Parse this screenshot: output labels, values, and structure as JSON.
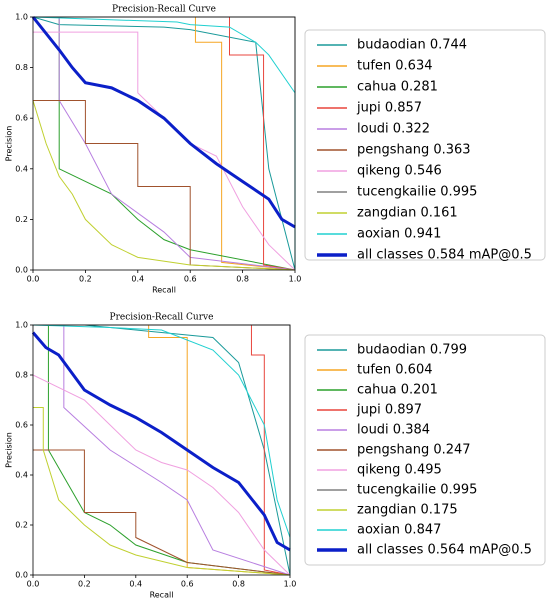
{
  "chart_data": [
    {
      "type": "line",
      "title": "Precision-Recall Curve",
      "xlabel": "Recall",
      "ylabel": "Precision",
      "xlim": [
        0,
        1
      ],
      "ylim": [
        0,
        1
      ],
      "xticks": [
        {
          "value": 0,
          "label": "0.0"
        },
        {
          "value": 0.2,
          "label": "0.2"
        },
        {
          "value": 0.4,
          "label": "0.4"
        },
        {
          "value": 0.6,
          "label": "0.6"
        },
        {
          "value": 0.8,
          "label": "0.8"
        },
        {
          "value": 1,
          "label": "1.0"
        }
      ],
      "yticks": [
        {
          "value": 0,
          "label": "0.0"
        },
        {
          "value": 0.2,
          "label": "0.2"
        },
        {
          "value": 0.4,
          "label": "0.4"
        },
        {
          "value": 0.6,
          "label": "0.6"
        },
        {
          "value": 0.8,
          "label": "0.8"
        },
        {
          "value": 1,
          "label": "1.0"
        }
      ],
      "series": [
        {
          "name": "budaodian 0.744",
          "color": "#1a9a9a",
          "x": [
            0,
            0.1,
            0.5,
            0.6,
            0.85,
            0.9,
            1.0
          ],
          "values": [
            1,
            0.97,
            0.96,
            0.95,
            0.9,
            0.4,
            0
          ]
        },
        {
          "name": "tufen 0.634",
          "color": "#f5a623",
          "x": [
            0,
            0.62,
            0.62,
            0.72,
            0.72,
            1.0
          ],
          "values": [
            1,
            1,
            0.9,
            0.9,
            0.03,
            0
          ]
        },
        {
          "name": "cahua 0.281",
          "color": "#2ca02c",
          "x": [
            0,
            0.1,
            0.1,
            0.2,
            0.3,
            0.4,
            0.5,
            0.6,
            1.0
          ],
          "values": [
            1,
            1,
            0.4,
            0.35,
            0.3,
            0.2,
            0.12,
            0.08,
            0
          ]
        },
        {
          "name": "jupi 0.857",
          "color": "#e8453c",
          "x": [
            0,
            0.75,
            0.75,
            0.88,
            0.88,
            1.0
          ],
          "values": [
            1,
            1,
            0.85,
            0.85,
            0.02,
            0
          ]
        },
        {
          "name": "loudi 0.322",
          "color": "#b87fe0",
          "x": [
            0,
            0.1,
            0.1,
            0.2,
            0.3,
            0.5,
            0.6,
            1.0
          ],
          "values": [
            1,
            1,
            0.67,
            0.5,
            0.3,
            0.15,
            0.05,
            0
          ]
        },
        {
          "name": "pengshang 0.363",
          "color": "#a0522d",
          "x": [
            0,
            0.2,
            0.2,
            0.4,
            0.4,
            0.6,
            0.6,
            1.0
          ],
          "values": [
            0.67,
            0.67,
            0.5,
            0.5,
            0.33,
            0.33,
            0.02,
            0
          ]
        },
        {
          "name": "qikeng 0.546",
          "color": "#f0a0e0",
          "x": [
            0,
            0.4,
            0.4,
            0.5,
            0.6,
            0.7,
            0.8,
            0.9,
            1.0
          ],
          "values": [
            0.94,
            0.94,
            0.7,
            0.6,
            0.5,
            0.45,
            0.25,
            0.1,
            0
          ]
        },
        {
          "name": "tucengkailie 0.995",
          "color": "#808080",
          "x": [
            0,
            1.0,
            1.0
          ],
          "values": [
            1,
            1,
            0
          ]
        },
        {
          "name": "zangdian 0.161",
          "color": "#c0d030",
          "x": [
            0,
            0.05,
            0.1,
            0.15,
            0.2,
            0.3,
            0.4,
            0.6,
            1.0
          ],
          "values": [
            0.67,
            0.5,
            0.37,
            0.3,
            0.2,
            0.1,
            0.05,
            0.02,
            0
          ]
        },
        {
          "name": "aoxian 0.941",
          "color": "#20d0d0",
          "x": [
            0,
            0.55,
            0.6,
            0.75,
            0.85,
            0.9,
            1.0,
            1.0
          ],
          "values": [
            1,
            0.98,
            0.97,
            0.96,
            0.9,
            0.85,
            0.7,
            0
          ]
        },
        {
          "name": "all classes 0.584 mAP@0.5",
          "color": "#0b1fc8",
          "width": 3,
          "x": [
            0,
            0.1,
            0.15,
            0.2,
            0.3,
            0.4,
            0.5,
            0.6,
            0.7,
            0.8,
            0.9,
            0.95,
            1.0
          ],
          "values": [
            1,
            0.87,
            0.8,
            0.74,
            0.72,
            0.67,
            0.6,
            0.5,
            0.42,
            0.35,
            0.28,
            0.2,
            0.17
          ]
        }
      ]
    },
    {
      "type": "line",
      "title": "Precision-Recall Curve",
      "xlabel": "Recall",
      "ylabel": "Precision",
      "xlim": [
        0,
        1
      ],
      "ylim": [
        0,
        1
      ],
      "xticks": [
        {
          "value": 0,
          "label": "0.0"
        },
        {
          "value": 0.2,
          "label": "0.2"
        },
        {
          "value": 0.4,
          "label": "0.4"
        },
        {
          "value": 0.6,
          "label": "0.6"
        },
        {
          "value": 0.8,
          "label": "0.8"
        },
        {
          "value": 1,
          "label": "1.0"
        }
      ],
      "yticks": [
        {
          "value": 0,
          "label": "0.0"
        },
        {
          "value": 0.2,
          "label": "0.2"
        },
        {
          "value": 0.4,
          "label": "0.4"
        },
        {
          "value": 0.6,
          "label": "0.6"
        },
        {
          "value": 0.8,
          "label": "0.8"
        },
        {
          "value": 1,
          "label": "1.0"
        }
      ],
      "series": [
        {
          "name": "budaodian 0.799",
          "color": "#1a9a9a",
          "x": [
            0,
            0.2,
            0.5,
            0.7,
            0.8,
            0.9,
            1.0
          ],
          "values": [
            1,
            1,
            0.97,
            0.95,
            0.85,
            0.5,
            0
          ]
        },
        {
          "name": "tufen 0.604",
          "color": "#f5a623",
          "x": [
            0,
            0.45,
            0.45,
            0.6,
            0.6,
            1.0
          ],
          "values": [
            1,
            1,
            0.95,
            0.95,
            0.03,
            0
          ]
        },
        {
          "name": "cahua 0.201",
          "color": "#2ca02c",
          "x": [
            0,
            0.06,
            0.06,
            0.2,
            0.3,
            0.4,
            0.6,
            1.0
          ],
          "values": [
            1,
            1,
            0.5,
            0.25,
            0.2,
            0.12,
            0.05,
            0
          ]
        },
        {
          "name": "jupi 0.897",
          "color": "#e8453c",
          "x": [
            0,
            0.85,
            0.85,
            0.9,
            0.9,
            1.0
          ],
          "values": [
            1,
            1,
            0.88,
            0.88,
            0.02,
            0
          ]
        },
        {
          "name": "loudi 0.384",
          "color": "#b87fe0",
          "x": [
            0,
            0.12,
            0.12,
            0.3,
            0.5,
            0.6,
            0.7,
            1.0
          ],
          "values": [
            1,
            1,
            0.67,
            0.5,
            0.37,
            0.3,
            0.1,
            0
          ]
        },
        {
          "name": "pengshang 0.247",
          "color": "#a0522d",
          "x": [
            0,
            0.2,
            0.2,
            0.4,
            0.4,
            0.6,
            1.0
          ],
          "values": [
            0.5,
            0.5,
            0.25,
            0.25,
            0.15,
            0.05,
            0
          ]
        },
        {
          "name": "qikeng 0.495",
          "color": "#f0a0e0",
          "x": [
            0,
            0.2,
            0.3,
            0.4,
            0.5,
            0.6,
            0.7,
            0.8,
            0.9,
            1.0
          ],
          "values": [
            0.8,
            0.7,
            0.6,
            0.5,
            0.45,
            0.42,
            0.35,
            0.25,
            0.1,
            0
          ]
        },
        {
          "name": "tucengkailie 0.995",
          "color": "#808080",
          "x": [
            0,
            1.0,
            1.0
          ],
          "values": [
            1,
            1,
            0
          ]
        },
        {
          "name": "zangdian 0.175",
          "color": "#c0d030",
          "x": [
            0,
            0.04,
            0.04,
            0.1,
            0.2,
            0.3,
            0.4,
            0.6,
            1.0
          ],
          "values": [
            0.67,
            0.67,
            0.5,
            0.3,
            0.2,
            0.12,
            0.08,
            0.03,
            0
          ]
        },
        {
          "name": "aoxian 0.847",
          "color": "#20d0d0",
          "x": [
            0,
            0.3,
            0.5,
            0.7,
            0.8,
            0.9,
            0.95,
            1.0,
            1.0
          ],
          "values": [
            1,
            0.99,
            0.98,
            0.9,
            0.8,
            0.6,
            0.3,
            0.15,
            0
          ]
        },
        {
          "name": "all classes 0.564 mAP@0.5",
          "color": "#0b1fc8",
          "width": 3,
          "x": [
            0,
            0.05,
            0.1,
            0.2,
            0.3,
            0.4,
            0.5,
            0.6,
            0.7,
            0.8,
            0.9,
            0.95,
            1.0
          ],
          "values": [
            0.97,
            0.91,
            0.88,
            0.74,
            0.68,
            0.63,
            0.57,
            0.5,
            0.43,
            0.37,
            0.24,
            0.13,
            0.1
          ]
        }
      ]
    }
  ]
}
